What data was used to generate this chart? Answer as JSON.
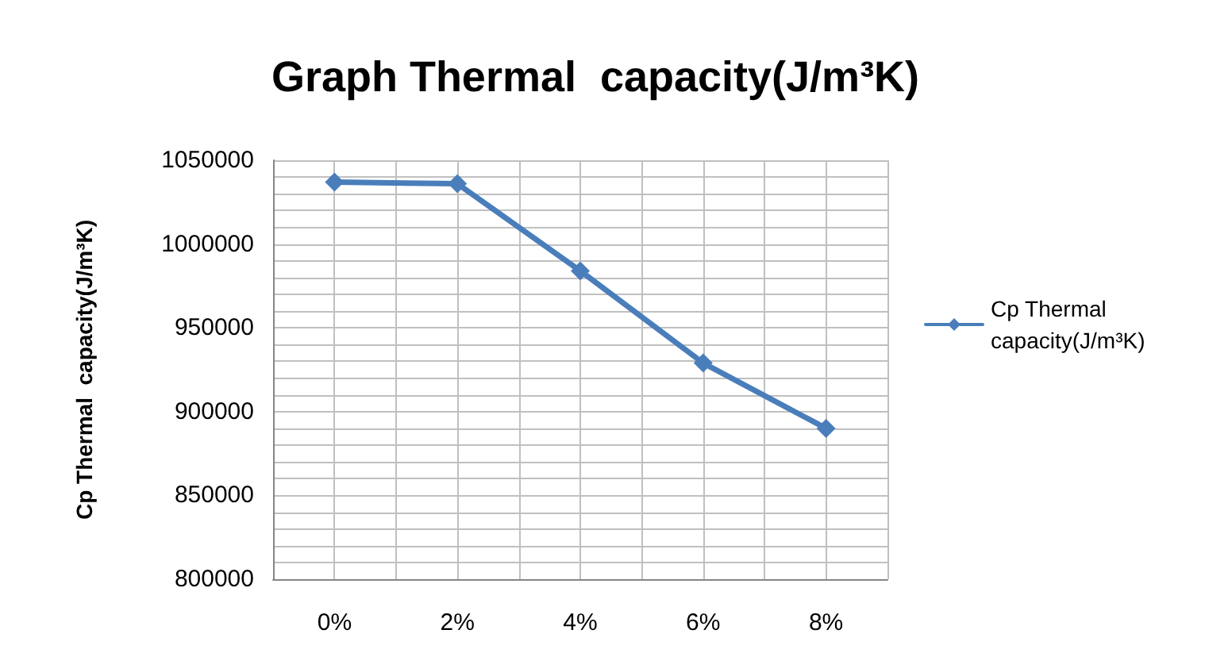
{
  "chart_data": {
    "type": "line",
    "title": "Graph Thermal  capacity(J/m³K)",
    "ylabel": "Cp Thermal  capacity(J/m³K)",
    "categories": [
      "0%",
      "2%",
      "4%",
      "6%",
      "8%"
    ],
    "series": [
      {
        "name": "Cp Thermal capacity(J/m³K)",
        "color": "#4a7ebb",
        "values": [
          1037000,
          1036000,
          984000,
          929000,
          890000
        ]
      }
    ],
    "ylim": [
      800000,
      1050000
    ],
    "yticks": [
      800000,
      850000,
      900000,
      950000,
      1000000,
      1050000
    ],
    "grid": true,
    "legend": "right",
    "marker": "diamond",
    "line_style": "solid"
  }
}
